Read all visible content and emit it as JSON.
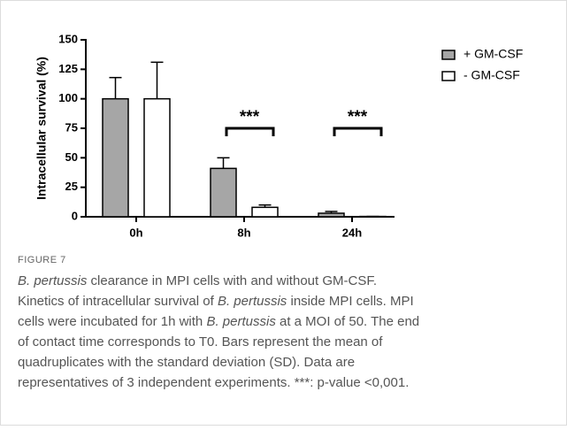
{
  "chart_data": {
    "type": "bar",
    "ylabel": "Intracellular survival (%)",
    "categories": [
      "0h",
      "8h",
      "24h"
    ],
    "series": [
      {
        "name": "+ GM-CSF",
        "color": "#a6a6a6",
        "values": [
          100,
          41,
          3
        ],
        "errors": [
          18,
          9,
          1.5
        ]
      },
      {
        "name": "- GM-CSF",
        "color": "#ffffff",
        "values": [
          100,
          8,
          0.3
        ],
        "errors": [
          31,
          2,
          0
        ]
      }
    ],
    "ylim": [
      0,
      150
    ],
    "yticks": [
      0,
      25,
      50,
      75,
      100,
      125,
      150
    ],
    "annotations": [
      {
        "text": "***",
        "category": "8h"
      },
      {
        "text": "***",
        "category": "24h"
      }
    ],
    "legend": "top-right"
  },
  "caption": {
    "label": "FIGURE 7",
    "lines": [
      [
        {
          "text": "B. pertussis",
          "italic": true
        },
        {
          "text": " clearance in MPI cells with and without GM-CSF.",
          "italic": false
        }
      ],
      [
        {
          "text": "Kinetics of intracellular survival of ",
          "italic": false
        },
        {
          "text": "B. pertussis",
          "italic": true
        },
        {
          "text": " inside MPI cells. MPI",
          "italic": false
        }
      ],
      [
        {
          "text": "cells were incubated for 1h with ",
          "italic": false
        },
        {
          "text": "B. pertussis",
          "italic": true
        },
        {
          "text": " at a MOI of 50. The end",
          "italic": false
        }
      ],
      [
        {
          "text": "of contact time corresponds to T0. Bars represent the mean of",
          "italic": false
        }
      ],
      [
        {
          "text": "quadruplicates with the standard deviation (SD). Data are",
          "italic": false
        }
      ],
      [
        {
          "text": "representatives of 3 independent experiments. ***: p-value <0,001.",
          "italic": false
        }
      ]
    ]
  }
}
